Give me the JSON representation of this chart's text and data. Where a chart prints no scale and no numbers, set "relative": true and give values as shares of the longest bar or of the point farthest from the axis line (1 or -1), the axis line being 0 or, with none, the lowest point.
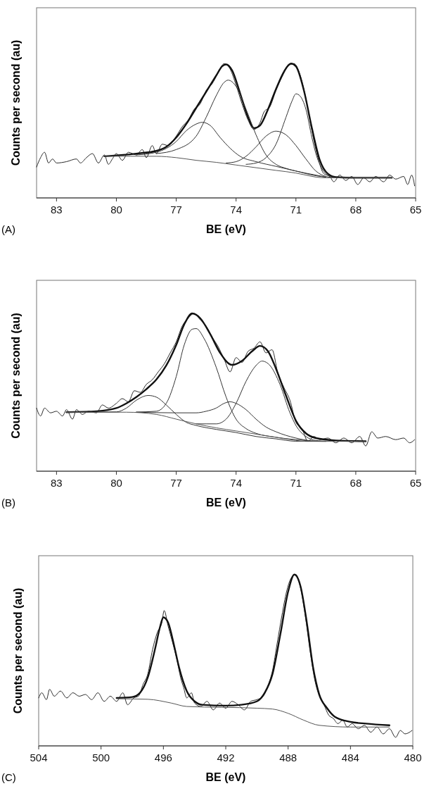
{
  "chart_data": [
    {
      "type": "line",
      "relative": true,
      "tick_labels": "x",
      "xlabel": "BE (eV)",
      "ylabel": "Counts per second (au)",
      "annotations": [
        "(A)"
      ],
      "xlim": [
        84,
        65
      ],
      "xticks": [
        83,
        80,
        77,
        74,
        71,
        68,
        65
      ],
      "series": [
        {
          "color": "#2a2a2a",
          "x": [
            84,
            83.8,
            83.6,
            83.4,
            83.2,
            83,
            82.5,
            82,
            81.8,
            81.5,
            81.2,
            80.9,
            80.6,
            80.4,
            80.2,
            80,
            79.7,
            79.4,
            79,
            78.7,
            78.5,
            78.2,
            78,
            77.7,
            77.4,
            77,
            76.7,
            76.4,
            76.1,
            75.8,
            75.5,
            75.2,
            74.9,
            74.6,
            74.3,
            74,
            73.7,
            73.4,
            73.1,
            72.8,
            72.6,
            72.3,
            72,
            71.7,
            71.4,
            71.1,
            70.8,
            70.5,
            70.2,
            69.9,
            69.6,
            69.3,
            69.1,
            68.8,
            68.5,
            68.2,
            67.9,
            67.6,
            67.3,
            67,
            66.6,
            66.3,
            66,
            65.6,
            65.4,
            65.2,
            65.05
          ],
          "values": [
            0.23,
            0.3,
            0.34,
            0.26,
            0.29,
            0.26,
            0.27,
            0.29,
            0.26,
            0.3,
            0.33,
            0.26,
            0.32,
            0.25,
            0.29,
            0.33,
            0.28,
            0.34,
            0.32,
            0.36,
            0.3,
            0.39,
            0.33,
            0.4,
            0.39,
            0.46,
            0.53,
            0.58,
            0.66,
            0.7,
            0.8,
            0.85,
            0.93,
            1.0,
            0.96,
            0.84,
            0.7,
            0.58,
            0.51,
            0.56,
            0.64,
            0.68,
            0.8,
            0.9,
            0.98,
            1.0,
            0.92,
            0.74,
            0.5,
            0.3,
            0.18,
            0.16,
            0.12,
            0.17,
            0.13,
            0.16,
            0.1,
            0.15,
            0.12,
            0.16,
            0.12,
            0.17,
            0.14,
            0.16,
            0.1,
            0.17,
            0.09
          ]
        },
        {
          "color": "#111111",
          "x": [
            80.6,
            79,
            78,
            77.5,
            77,
            76.5,
            76,
            75.5,
            75,
            74.7,
            74.5,
            74.2,
            73.8,
            73.4,
            73.1,
            72.8,
            72.4,
            72,
            71.6,
            71.25,
            71,
            70.6,
            70.2,
            69.8,
            69.4,
            69,
            68,
            66.2
          ],
          "values": [
            0.31,
            0.33,
            0.35,
            0.38,
            0.45,
            0.55,
            0.67,
            0.79,
            0.91,
            0.98,
            0.994,
            0.95,
            0.78,
            0.6,
            0.52,
            0.54,
            0.66,
            0.81,
            0.94,
            1.0,
            0.98,
            0.8,
            0.52,
            0.28,
            0.18,
            0.155,
            0.15,
            0.15
          ]
        },
        {
          "color": "#333333",
          "x": [
            78,
            77,
            76,
            75.5,
            75,
            74.6,
            74.4,
            74,
            73.5,
            73,
            72.5,
            72,
            71.5,
            71,
            70,
            69.5
          ],
          "values": [
            0.33,
            0.36,
            0.46,
            0.6,
            0.76,
            0.86,
            0.877,
            0.83,
            0.66,
            0.47,
            0.32,
            0.25,
            0.22,
            0.2,
            0.17,
            0.155
          ]
        },
        {
          "color": "#333333",
          "x": [
            79,
            78,
            77,
            76.5,
            76,
            75.7,
            75.3,
            74.8,
            74.3,
            73.8,
            73,
            72,
            71,
            70,
            69.5
          ],
          "values": [
            0.32,
            0.34,
            0.42,
            0.5,
            0.55,
            0.563,
            0.54,
            0.45,
            0.37,
            0.31,
            0.27,
            0.235,
            0.2,
            0.165,
            0.155
          ]
        },
        {
          "color": "#333333",
          "x": [
            74.5,
            74,
            73.5,
            73,
            72.5,
            72,
            71.5,
            71,
            70.5,
            70,
            69.5,
            69
          ],
          "values": [
            0.26,
            0.27,
            0.31,
            0.38,
            0.46,
            0.497,
            0.47,
            0.39,
            0.29,
            0.2,
            0.16,
            0.15
          ]
        },
        {
          "color": "#333333",
          "x": [
            73.5,
            73,
            72.5,
            72,
            71.5,
            71.2,
            71,
            70.8,
            70.5,
            70.2,
            70,
            69.7,
            69.3,
            69
          ],
          "values": [
            0.25,
            0.26,
            0.3,
            0.4,
            0.6,
            0.72,
            0.775,
            0.76,
            0.66,
            0.45,
            0.33,
            0.22,
            0.16,
            0.15
          ]
        },
        {
          "color": "#555555",
          "x": [
            80.6,
            78,
            77,
            76,
            75,
            74,
            73,
            72,
            71,
            70.5,
            70,
            69.5,
            66.2
          ],
          "values": [
            0.31,
            0.31,
            0.3,
            0.28,
            0.265,
            0.245,
            0.225,
            0.205,
            0.185,
            0.17,
            0.155,
            0.15,
            0.15
          ]
        }
      ]
    },
    {
      "type": "line",
      "relative": true,
      "tick_labels": "x",
      "xlabel": "BE (eV)",
      "ylabel": "Counts per second (au)",
      "annotations": [
        "(B)"
      ],
      "xlim": [
        84,
        65
      ],
      "xticks": [
        83,
        80,
        77,
        74,
        71,
        68,
        65
      ],
      "series": [
        {
          "color": "#2a2a2a",
          "x": [
            84,
            83.8,
            83.6,
            83.3,
            83,
            82.7,
            82.5,
            82.2,
            82,
            81.7,
            81.4,
            81,
            80.7,
            80.4,
            80,
            79.7,
            79.4,
            79.1,
            78.8,
            78.5,
            78.2,
            77.9,
            77.6,
            77.3,
            77,
            76.7,
            76.4,
            76.1,
            75.8,
            75.5,
            75.2,
            74.9,
            74.6,
            74.3,
            74,
            73.7,
            73.4,
            73.1,
            72.8,
            72.5,
            72.2,
            71.9,
            71.6,
            71.3,
            71,
            70.7,
            70.4,
            70.1,
            69.8,
            69.4,
            69,
            68.6,
            68.2,
            67.8,
            67.5,
            67.2,
            66.9,
            66.5,
            66,
            65.6,
            65.3,
            65.05
          ],
          "values": [
            0.4,
            0.35,
            0.4,
            0.37,
            0.38,
            0.35,
            0.39,
            0.33,
            0.39,
            0.36,
            0.38,
            0.37,
            0.42,
            0.4,
            0.43,
            0.46,
            0.44,
            0.51,
            0.5,
            0.55,
            0.58,
            0.63,
            0.68,
            0.75,
            0.82,
            0.92,
            0.97,
            1.0,
            0.96,
            0.92,
            0.85,
            0.79,
            0.71,
            0.63,
            0.72,
            0.69,
            0.76,
            0.78,
            0.82,
            0.75,
            0.77,
            0.62,
            0.53,
            0.45,
            0.31,
            0.27,
            0.19,
            0.22,
            0.2,
            0.21,
            0.18,
            0.21,
            0.18,
            0.22,
            0.16,
            0.25,
            0.21,
            0.22,
            0.2,
            0.21,
            0.18,
            0.2
          ]
        },
        {
          "color": "#111111",
          "x": [
            82.5,
            81,
            80,
            79.5,
            79,
            78.5,
            78,
            77.5,
            77,
            76.6,
            76.2,
            75.8,
            75.3,
            74.8,
            74.2,
            73.7,
            73.2,
            72.8,
            72.4,
            72,
            71.5,
            71,
            70.5,
            70,
            69,
            67.5
          ],
          "values": [
            0.374,
            0.38,
            0.4,
            0.43,
            0.47,
            0.52,
            0.58,
            0.67,
            0.8,
            0.93,
            1.0,
            0.97,
            0.87,
            0.75,
            0.674,
            0.7,
            0.76,
            0.794,
            0.76,
            0.65,
            0.48,
            0.32,
            0.24,
            0.21,
            0.195,
            0.19
          ]
        },
        {
          "color": "#333333",
          "x": [
            79,
            78,
            77.5,
            77,
            76.6,
            76.2,
            76,
            75.6,
            75,
            74.5,
            74,
            73.5,
            73,
            72,
            71,
            70
          ],
          "values": [
            0.375,
            0.38,
            0.43,
            0.6,
            0.8,
            0.9,
            0.904,
            0.84,
            0.66,
            0.47,
            0.33,
            0.27,
            0.24,
            0.215,
            0.2,
            0.19
          ]
        },
        {
          "color": "#333333",
          "x": [
            76,
            75,
            74.5,
            74,
            73.5,
            73,
            72.7,
            72.3,
            71.8,
            71.3,
            71,
            70.5,
            70,
            69.5
          ],
          "values": [
            0.3,
            0.3,
            0.33,
            0.43,
            0.57,
            0.67,
            0.698,
            0.67,
            0.55,
            0.37,
            0.29,
            0.22,
            0.195,
            0.19
          ]
        },
        {
          "color": "#333333",
          "x": [
            82.5,
            80,
            79.5,
            79,
            78.4,
            78,
            77.5,
            77,
            76.5,
            76,
            75,
            74,
            73,
            72,
            71,
            70
          ],
          "values": [
            0.374,
            0.376,
            0.4,
            0.45,
            0.48,
            0.47,
            0.42,
            0.36,
            0.31,
            0.29,
            0.265,
            0.245,
            0.22,
            0.205,
            0.19,
            0.19
          ]
        },
        {
          "color": "#333333",
          "x": [
            79,
            77,
            76,
            75.5,
            75,
            74.6,
            74.3,
            74,
            73.5,
            73,
            72.5,
            72,
            71,
            70,
            69.5
          ],
          "values": [
            0.374,
            0.37,
            0.37,
            0.38,
            0.4,
            0.43,
            0.44,
            0.43,
            0.39,
            0.33,
            0.28,
            0.25,
            0.21,
            0.19,
            0.189
          ]
        },
        {
          "color": "#555555",
          "x": [
            82.5,
            79.5,
            78,
            77,
            76,
            75,
            74,
            73,
            72,
            71,
            70.5,
            67.5
          ],
          "values": [
            0.374,
            0.374,
            0.36,
            0.33,
            0.3,
            0.275,
            0.255,
            0.235,
            0.215,
            0.195,
            0.189,
            0.189
          ]
        }
      ]
    },
    {
      "type": "line",
      "relative": true,
      "tick_labels": "x",
      "xlabel": "BE (eV)",
      "ylabel": "Counts per second (au)",
      "annotations": [
        "(C)"
      ],
      "xlim": [
        504,
        480
      ],
      "xticks": [
        504,
        500,
        496,
        492,
        488,
        484,
        480
      ],
      "series": [
        {
          "color": "#2a2a2a",
          "x": [
            504,
            503.8,
            503.5,
            503.3,
            503,
            502.6,
            502.2,
            501.8,
            501.4,
            501,
            500.6,
            500.2,
            499.8,
            499.4,
            499,
            498.6,
            498.3,
            497.9,
            497.6,
            497.3,
            497,
            496.7,
            496.4,
            496.1,
            495.95,
            495.7,
            495.4,
            495.1,
            494.9,
            494.7,
            494.5,
            494.2,
            494,
            493.6,
            493.2,
            492.8,
            492.4,
            492,
            491.6,
            491.2,
            490.8,
            490.4,
            490,
            489.6,
            489.3,
            489,
            488.7,
            488.4,
            488.1,
            487.8,
            487.5,
            487.2,
            486.9,
            486.6,
            486.3,
            486,
            485.7,
            485.4,
            485.1,
            484.8,
            484.5,
            484.2,
            483.9,
            483.5,
            483.1,
            482.7,
            482.3,
            481.9,
            481.5,
            481.1,
            480.8,
            480.5,
            480.05
          ],
          "values": [
            0.28,
            0.31,
            0.27,
            0.33,
            0.29,
            0.32,
            0.28,
            0.31,
            0.29,
            0.3,
            0.27,
            0.31,
            0.26,
            0.29,
            0.26,
            0.31,
            0.24,
            0.28,
            0.29,
            0.36,
            0.42,
            0.56,
            0.66,
            0.72,
            0.79,
            0.7,
            0.6,
            0.49,
            0.4,
            0.34,
            0.28,
            0.31,
            0.25,
            0.23,
            0.26,
            0.21,
            0.25,
            0.22,
            0.26,
            0.24,
            0.21,
            0.26,
            0.27,
            0.29,
            0.35,
            0.44,
            0.6,
            0.76,
            0.9,
            0.98,
            1.0,
            0.92,
            0.76,
            0.56,
            0.39,
            0.29,
            0.24,
            0.18,
            0.16,
            0.13,
            0.15,
            0.11,
            0.13,
            0.1,
            0.12,
            0.08,
            0.11,
            0.07,
            0.1,
            0.05,
            0.09,
            0.07,
            0.09
          ]
        },
        {
          "color": "#111111",
          "x": [
            499,
            498,
            497.5,
            497,
            496.5,
            496.2,
            496,
            495.7,
            495.3,
            495,
            494.5,
            494,
            493.5,
            492,
            491,
            490,
            489.5,
            489,
            488.5,
            488,
            487.6,
            487.2,
            486.8,
            486.4,
            486,
            485.5,
            485,
            484,
            483,
            481.5
          ],
          "values": [
            0.28,
            0.285,
            0.31,
            0.4,
            0.58,
            0.7,
            0.75,
            0.72,
            0.58,
            0.46,
            0.32,
            0.26,
            0.24,
            0.235,
            0.24,
            0.26,
            0.31,
            0.42,
            0.65,
            0.9,
            1.0,
            0.93,
            0.72,
            0.46,
            0.3,
            0.22,
            0.17,
            0.14,
            0.13,
            0.12
          ]
        },
        {
          "color": "#555555",
          "x": [
            499,
            497,
            495.5,
            494.5,
            490,
            489,
            488,
            487,
            486,
            484,
            481.5
          ],
          "values": [
            0.275,
            0.272,
            0.25,
            0.23,
            0.22,
            0.215,
            0.19,
            0.15,
            0.12,
            0.11,
            0.11
          ]
        }
      ]
    }
  ]
}
